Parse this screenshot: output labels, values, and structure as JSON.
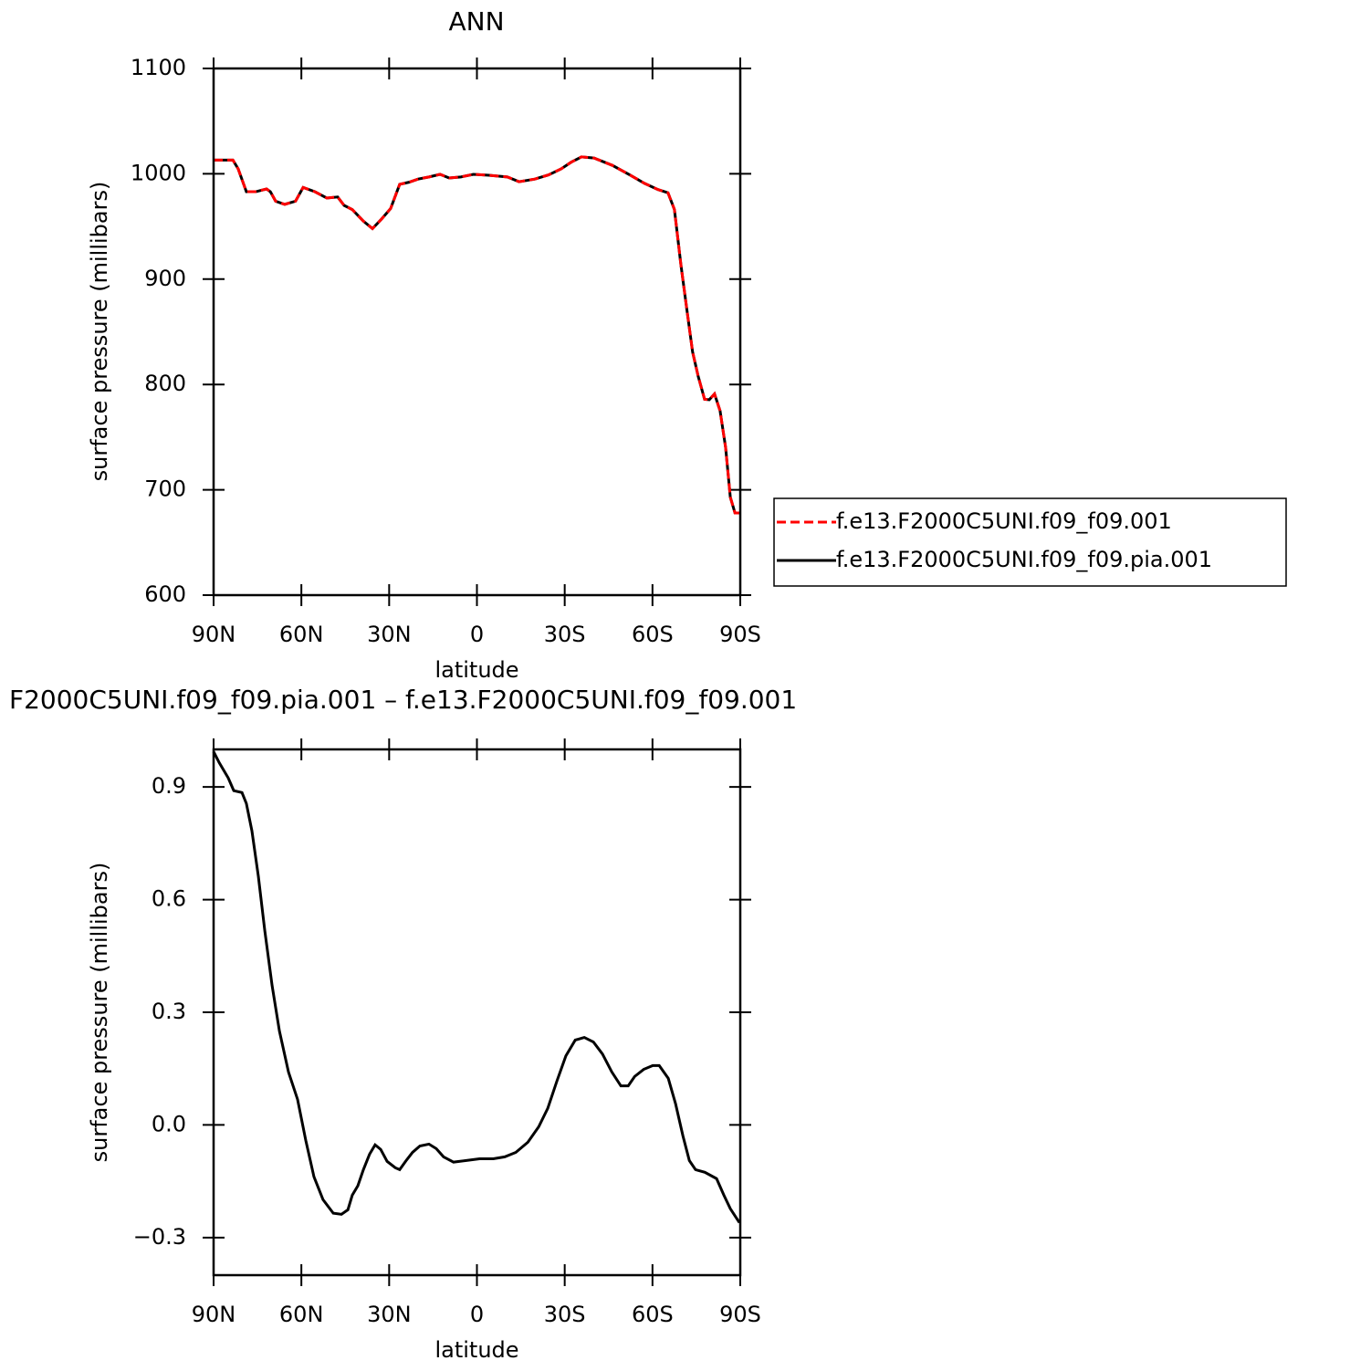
{
  "chart_data": [
    {
      "type": "line",
      "title": "ANN",
      "xlabel": "latitude",
      "ylabel": "surface pressure (millibars)",
      "x": [
        90,
        83.4,
        81.6,
        78.8,
        75.6,
        71.9,
        70.6,
        68.8,
        65.7,
        62,
        59.4,
        55.4,
        51.3,
        47.6,
        45.4,
        42.6,
        38.8,
        35.7,
        32.6,
        29.5,
        26.4,
        23.2,
        20.1,
        16.4,
        12.6,
        9.5,
        5.5,
        1.2,
        -4.1,
        -10.4,
        -14.4,
        -19.8,
        -24.5,
        -28.8,
        -32.2,
        -35.7,
        -40,
        -46.3,
        -52.5,
        -57.2,
        -61.9,
        -65.3,
        -67.5,
        -69.7,
        -71.8,
        -73.7,
        -75.6,
        -77.8,
        -79.4,
        -81.2,
        -83.1,
        -85,
        -86.6,
        -88.2,
        -90
      ],
      "series": [
        {
          "name": "f.e13.F2000C5UNI.f09_f09.pia.001",
          "color": "#000000",
          "line_style": "solid",
          "values": [
            1013,
            1013,
            1004.7,
            983,
            983,
            985.6,
            983,
            974,
            971,
            974,
            987,
            983,
            977,
            978,
            970,
            966,
            955,
            948,
            957,
            967,
            990,
            992,
            995,
            997,
            999.5,
            996,
            997,
            999.5,
            998.6,
            997,
            992.5,
            995,
            999,
            1004.7,
            1011,
            1016,
            1015,
            1008,
            998.6,
            991,
            985,
            982,
            966,
            914,
            870,
            831,
            808,
            786,
            785.5,
            791,
            775,
            740,
            693,
            678,
            678
          ]
        },
        {
          "name": "f.e13.F2000C5UNI.f09_f09.001",
          "color": "#ff0000",
          "line_style": "dashed",
          "values": [
            1013,
            1013,
            1004.7,
            983,
            983,
            985.6,
            983,
            974,
            971,
            974,
            987,
            983,
            977,
            978,
            970,
            966,
            955,
            948,
            957,
            967,
            990,
            992,
            995,
            997,
            999.5,
            996,
            997,
            999.5,
            998.6,
            997,
            992.5,
            995,
            999,
            1004.7,
            1011,
            1016,
            1015,
            1008,
            998.6,
            991,
            985,
            982,
            966,
            914,
            870,
            831,
            808,
            786,
            785.5,
            791,
            775,
            740,
            693,
            678,
            678
          ]
        }
      ],
      "xlim": [
        90,
        -90
      ],
      "xticks": [
        {
          "value": 90,
          "label": "90N"
        },
        {
          "value": 60,
          "label": "60N"
        },
        {
          "value": 30,
          "label": "30N"
        },
        0,
        {
          "value": -30,
          "label": "30S"
        },
        {
          "value": -60,
          "label": "60S"
        },
        {
          "value": -90,
          "label": "90S"
        }
      ],
      "ylim": [
        600,
        1100
      ],
      "yticks": [
        600,
        700,
        800,
        900,
        1000,
        1100
      ],
      "legend": "right"
    },
    {
      "type": "line",
      "title": "F2000C5UNI.f09_f09.pia.001 – f.e13.F2000C5UNI.f09_f09.001",
      "xlabel": "latitude",
      "ylabel": "surface pressure (millibars)",
      "x": [
        90,
        88.1,
        85,
        83.1,
        80.3,
        78.8,
        76.9,
        74.7,
        72.5,
        70,
        67.5,
        64.4,
        61.3,
        58.5,
        55.7,
        52.6,
        49.1,
        46.3,
        44.1,
        42.6,
        40.7,
        38.8,
        36.7,
        34.8,
        32.9,
        30.7,
        27.9,
        26.4,
        24.2,
        22,
        19.5,
        16.4,
        13.9,
        11.4,
        8,
        3.9,
        -0.9,
        -5.6,
        -9.5,
        -13.3,
        -17.4,
        -21.1,
        -24.2,
        -27.3,
        -30.4,
        -33.6,
        -36.7,
        -39.8,
        -42.9,
        -46.1,
        -49.2,
        -51.7,
        -53.9,
        -57,
        -60.1,
        -62.3,
        -65.4,
        -67.9,
        -70.4,
        -72.6,
        -74.7,
        -77.9,
        -81.9,
        -84.4,
        -86.6,
        -89.7
      ],
      "series": [
        {
          "name": "F2000C5UNI.f09_f09.pia.001 – f.e13.F2000C5UNI.f09_f09.001",
          "color": "#000000",
          "line_style": "solid",
          "values": [
            0.994,
            0.965,
            0.924,
            0.89,
            0.885,
            0.856,
            0.783,
            0.662,
            0.517,
            0.371,
            0.25,
            0.141,
            0.068,
            -0.041,
            -0.138,
            -0.199,
            -0.235,
            -0.238,
            -0.226,
            -0.187,
            -0.162,
            -0.119,
            -0.078,
            -0.053,
            -0.065,
            -0.097,
            -0.114,
            -0.119,
            -0.095,
            -0.073,
            -0.056,
            -0.051,
            -0.063,
            -0.085,
            -0.099,
            -0.095,
            -0.09,
            -0.09,
            -0.085,
            -0.073,
            -0.046,
            -0.005,
            0.044,
            0.116,
            0.184,
            0.226,
            0.233,
            0.221,
            0.189,
            0.141,
            0.104,
            0.104,
            0.129,
            0.148,
            0.158,
            0.158,
            0.124,
            0.056,
            -0.029,
            -0.095,
            -0.119,
            -0.126,
            -0.143,
            -0.187,
            -0.223,
            -0.26
          ]
        }
      ],
      "xlim": [
        90,
        -90
      ],
      "xticks": [
        {
          "value": 90,
          "label": "90N"
        },
        {
          "value": 60,
          "label": "60N"
        },
        {
          "value": 30,
          "label": "30N"
        },
        0,
        {
          "value": -30,
          "label": "30S"
        },
        {
          "value": -60,
          "label": "60S"
        },
        {
          "value": -90,
          "label": "90S"
        }
      ],
      "ylim": [
        -0.4,
        1.0
      ],
      "yticks": [
        {
          "value": -0.3,
          "label": "−0.3"
        },
        {
          "value": 0,
          "label": "0.0"
        },
        0.3,
        0.6,
        0.9
      ]
    }
  ]
}
